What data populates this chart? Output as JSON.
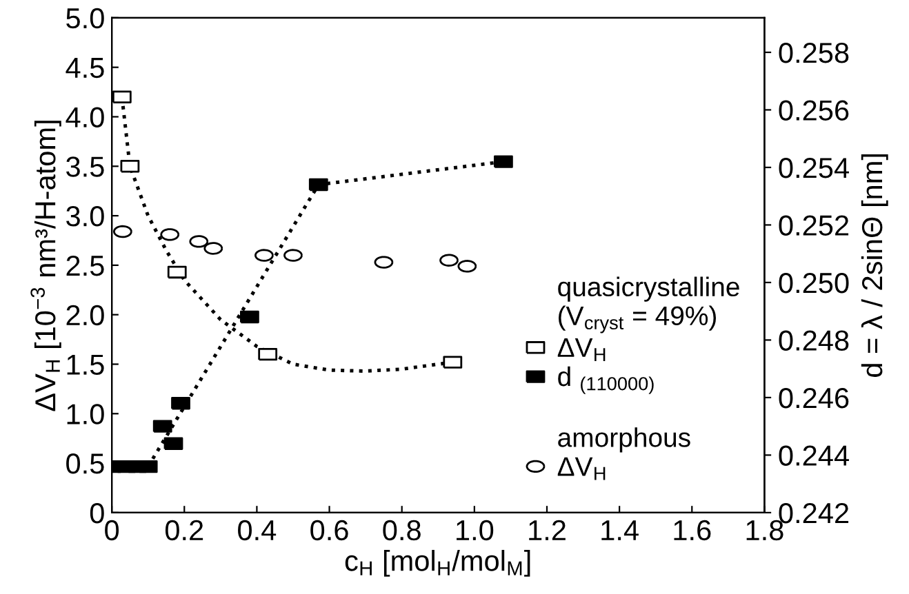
{
  "chart_data": {
    "type": "scatter",
    "xlabel": "c$_{H}$ [mol$_{H}$/mol$_{M}$]",
    "ylabel": "ΔV$_{H}$ [10$^{−3}$ nm³/H-atom]",
    "y2label": "d = λ / 2sinΘ [nm]",
    "annotations": [
      "quasicrystalline\n(V$_{cryst}$ = 49%)",
      "amorphous"
    ],
    "xlim": [
      0,
      1.8
    ],
    "xticks": [
      0,
      0.2,
      0.4,
      0.6,
      0.8,
      {
        "value": 1.0,
        "label": "1.0"
      },
      1.2,
      1.4,
      1.6,
      1.8
    ],
    "ylim": [
      0,
      5
    ],
    "yticks": [
      0,
      0.5,
      {
        "value": 1,
        "label": "1.0"
      },
      1.5,
      {
        "value": 2,
        "label": "2.0"
      },
      2.5,
      {
        "value": 3,
        "label": "3.0"
      },
      3.5,
      {
        "value": 4,
        "label": "4.0"
      },
      4.5,
      {
        "value": 5,
        "label": "5.0"
      }
    ],
    "y2lim": [
      0.242,
      0.2592
    ],
    "y2ticks": [
      0.242,
      0.244,
      0.246,
      0.248,
      {
        "value": 0.25,
        "label": "0.250"
      },
      0.252,
      0.254,
      0.256,
      0.258
    ],
    "grid": false,
    "legend": "right",
    "series": [
      {
        "type": "line",
        "line_style": "dotted",
        "marker": "none",
        "color": "#000000",
        "x": [
          0.028,
          0.05,
          0.1,
          0.15,
          0.2,
          0.3,
          0.4,
          0.5,
          0.6,
          0.7,
          0.8,
          0.94
        ],
        "values": [
          4.2,
          3.5,
          3.0,
          2.65,
          2.35,
          1.95,
          1.68,
          1.5,
          1.44,
          1.43,
          1.45,
          1.52
        ]
      },
      {
        "type": "line",
        "line_style": "dotted",
        "marker": "none",
        "color": "#000000",
        "axis": "y2",
        "x": [
          0.1,
          0.57,
          1.08
        ],
        "values": [
          0.2436,
          0.2534,
          0.2542
        ]
      },
      {
        "name": "ΔV$_{H}$",
        "marker": "square",
        "color": "#ffffff",
        "x": [
          0.028,
          0.05,
          0.18,
          0.43,
          0.94
        ],
        "values": [
          4.2,
          3.5,
          2.43,
          1.6,
          1.52
        ]
      },
      {
        "name": "d $_{(110000)}$",
        "marker": "square",
        "color": "#000000",
        "axis": "y2",
        "x": [
          0,
          0.04,
          0.07,
          0.1,
          0.14,
          0.17,
          0.19,
          0.38,
          0.57,
          1.08
        ],
        "values": [
          0.2436,
          0.2436,
          0.2436,
          0.2436,
          0.245,
          0.2444,
          0.2458,
          0.2488,
          0.2534,
          0.2542
        ]
      },
      {
        "name": "ΔV$_{H}$",
        "marker": "circle",
        "color": "#ffffff",
        "x": [
          0.03,
          0.16,
          0.24,
          0.28,
          0.42,
          0.5,
          0.75,
          0.93,
          0.98
        ],
        "values": [
          2.84,
          2.81,
          2.74,
          2.67,
          2.6,
          2.6,
          2.53,
          2.55,
          2.49
        ]
      }
    ]
  }
}
